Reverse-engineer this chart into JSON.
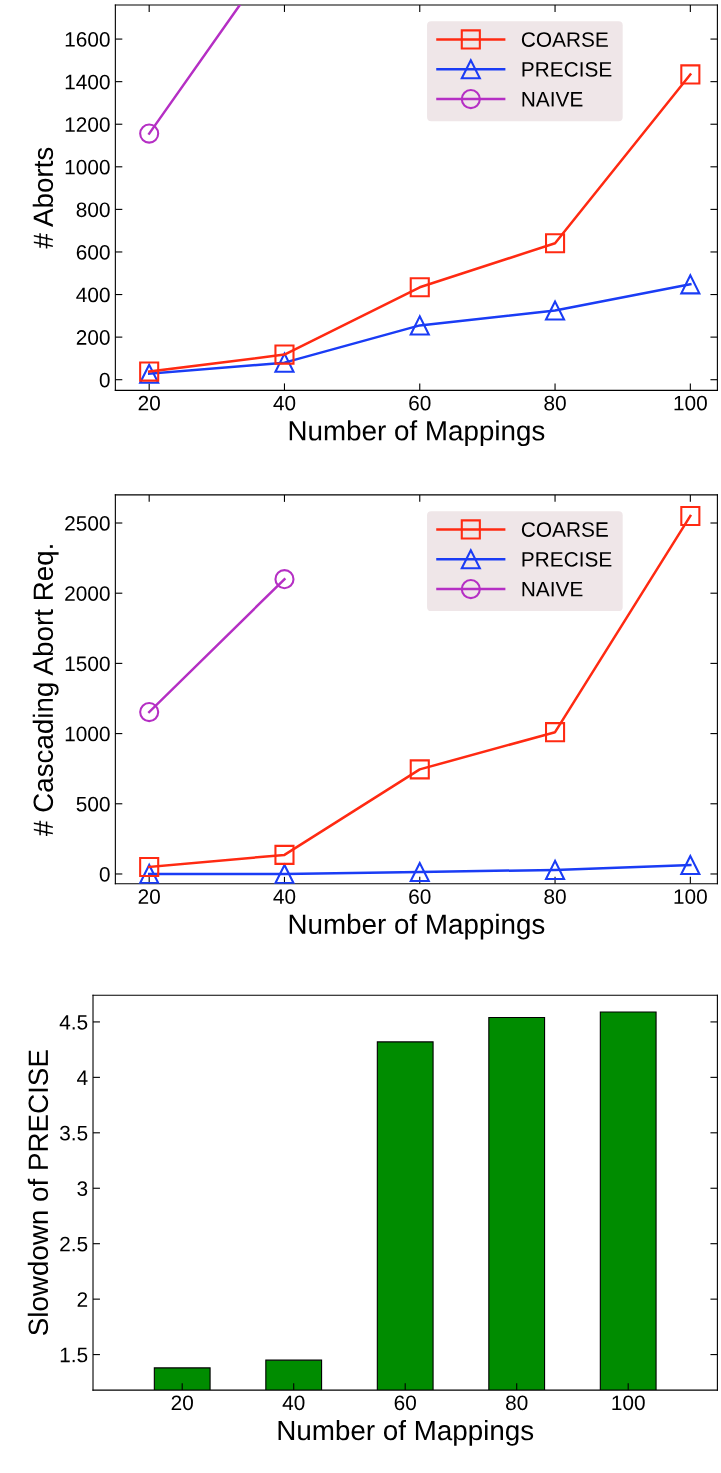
{
  "chart_data": [
    {
      "type": "line",
      "x": [
        20,
        40,
        60,
        80,
        100
      ],
      "xlabel": "Number of Mappings",
      "ylabel": "# Aborts",
      "xlim": [
        15,
        104
      ],
      "ylim": [
        -50,
        1760
      ],
      "xticks": [
        20,
        40,
        60,
        80,
        100
      ],
      "yticks": [
        0,
        200,
        400,
        600,
        800,
        1000,
        1200,
        1400,
        1600
      ],
      "legend": "top right",
      "grid": false,
      "series": [
        {
          "name": "COARSE",
          "color": "#ff2a12",
          "marker": "square",
          "values": [
            38,
            118,
            434,
            641,
            1434
          ]
        },
        {
          "name": "PRECISE",
          "color": "#1a3cf5",
          "marker": "triangle",
          "values": [
            28,
            80,
            255,
            325,
            448
          ]
        },
        {
          "name": "NAIVE",
          "color": "#b52fc4",
          "marker": "circle",
          "x": [
            20,
            33.4
          ],
          "values": [
            1156,
            1760
          ]
        }
      ]
    },
    {
      "type": "line",
      "x": [
        20,
        40,
        60,
        80,
        100
      ],
      "xlabel": "Number of Mappings",
      "ylabel": "# Cascading Abort Req.",
      "xlim": [
        15,
        104
      ],
      "ylim": [
        -70,
        2700
      ],
      "xticks": [
        20,
        40,
        60,
        80,
        100
      ],
      "yticks": [
        0,
        500,
        1000,
        1500,
        2000,
        2500
      ],
      "legend": "top right",
      "grid": false,
      "series": [
        {
          "name": "COARSE",
          "color": "#ff2a12",
          "marker": "square",
          "values": [
            50,
            136,
            745,
            1010,
            2550
          ]
        },
        {
          "name": "PRECISE",
          "color": "#1a3cf5",
          "marker": "triangle",
          "values": [
            0,
            0,
            14,
            29,
            64
          ]
        },
        {
          "name": "NAIVE",
          "color": "#b52fc4",
          "marker": "circle",
          "values": [
            1153,
            2100,
            null,
            null,
            null
          ]
        }
      ]
    },
    {
      "type": "bar",
      "categories": [
        "20",
        "40",
        "60",
        "80",
        "100"
      ],
      "xlabel": "Number of Mappings",
      "ylabel": "Slowdown of PRECISE",
      "ylim": [
        1.18,
        4.74
      ],
      "yticks": [
        1.5,
        2,
        2.5,
        3,
        3.5,
        4,
        4.5
      ],
      "grid": false,
      "legend": false,
      "series": [
        {
          "color": "#008c00",
          "values": [
            1.38,
            1.45,
            4.32,
            4.54,
            4.59
          ]
        }
      ]
    }
  ]
}
